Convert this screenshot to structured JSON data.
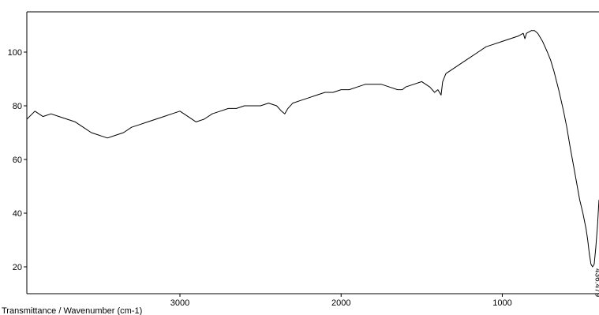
{
  "chart_data": {
    "type": "line",
    "title": "",
    "xlabel": "Transmittance / Wavenumber (cm-1)",
    "ylabel": "",
    "x_reversed": true,
    "xlim": [
      3950,
      400
    ],
    "ylim": [
      10,
      115
    ],
    "x_ticks": [
      3000,
      2000,
      1000
    ],
    "x_tick_labels": [
      "3000",
      "2000",
      "1000"
    ],
    "y_ticks": [
      20,
      40,
      60,
      80,
      100
    ],
    "y_tick_labels": [
      "20",
      "40",
      "60",
      "80",
      "100"
    ],
    "grid": false,
    "legend": "none",
    "line_color": "#000000",
    "series": [
      {
        "x": [
          3950,
          3900,
          3850,
          3800,
          3750,
          3700,
          3650,
          3600,
          3550,
          3500,
          3450,
          3400,
          3350,
          3300,
          3250,
          3200,
          3150,
          3100,
          3050,
          3000,
          2950,
          2900,
          2850,
          2800,
          2750,
          2700,
          2650,
          2600,
          2550,
          2500,
          2450,
          2400,
          2370,
          2350,
          2330,
          2300,
          2250,
          2200,
          2150,
          2100,
          2050,
          2000,
          1950,
          1900,
          1850,
          1800,
          1750,
          1700,
          1650,
          1620,
          1600,
          1550,
          1500,
          1450,
          1420,
          1400,
          1380,
          1370,
          1350,
          1300,
          1250,
          1200,
          1150,
          1100,
          1050,
          1000,
          950,
          900,
          870,
          860,
          850,
          820,
          800,
          780,
          750,
          720,
          700,
          680,
          650,
          620,
          600,
          580,
          550,
          520,
          500,
          480,
          470,
          460,
          450,
          440,
          430,
          420,
          410,
          400
        ],
        "y": [
          75,
          78,
          76,
          77,
          76,
          75,
          74,
          72,
          70,
          69,
          68,
          69,
          70,
          72,
          73,
          74,
          75,
          76,
          77,
          78,
          76,
          74,
          75,
          77,
          78,
          79,
          79,
          80,
          80,
          80,
          81,
          80,
          78,
          77,
          79,
          81,
          82,
          83,
          84,
          85,
          85,
          86,
          86,
          87,
          88,
          88,
          88,
          87,
          86,
          86,
          87,
          88,
          89,
          87,
          85,
          86,
          84,
          89,
          92,
          94,
          96,
          98,
          100,
          102,
          103,
          104,
          105,
          106,
          107,
          105,
          107,
          108,
          108,
          107,
          104,
          100,
          97,
          93,
          86,
          78,
          72,
          65,
          55,
          45,
          40,
          34,
          30,
          25,
          21,
          20,
          21,
          27,
          35,
          45
        ]
      }
    ],
    "peak_annotation": {
      "x": 436.479,
      "y": 20,
      "label": "436.479"
    }
  }
}
